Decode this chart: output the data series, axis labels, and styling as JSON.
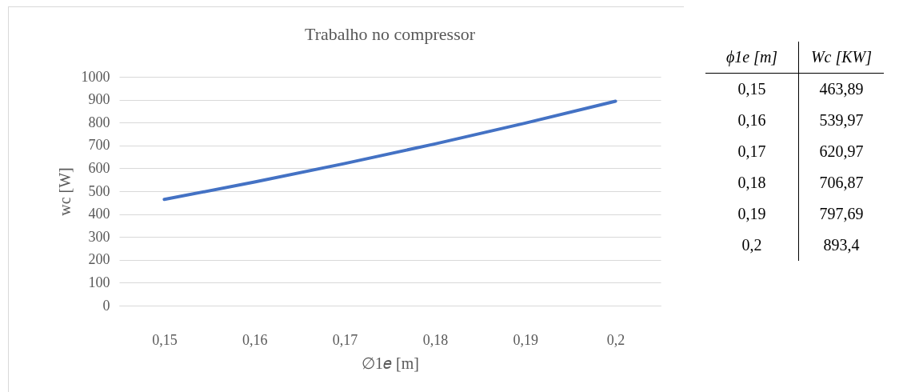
{
  "chart_data": {
    "type": "line",
    "title": "Trabalho no compressor",
    "xlabel": "∅1𝑒 [m]",
    "ylabel": "wc [W]",
    "categories": [
      "0,15",
      "0,16",
      "0,17",
      "0,18",
      "0,19",
      "0,2"
    ],
    "series": [
      {
        "color": "#4472c4",
        "values": [
          463.89,
          539.97,
          620.97,
          706.87,
          797.69,
          893.4
        ]
      }
    ],
    "value_labels": [
      "463,89",
      "539,97",
      "620,97",
      "706,87",
      "797,69",
      "893,4"
    ],
    "annotations": [
      "ϕ1e [m]",
      "Wc [KW]"
    ],
    "ylim": [
      0,
      1000
    ],
    "yticks": [
      0,
      100,
      200,
      300,
      400,
      500,
      600,
      700,
      800,
      900,
      {
        "value": 1000,
        "label": "1000"
      }
    ],
    "grid": "y",
    "marker": "none",
    "line_style": "solid"
  }
}
